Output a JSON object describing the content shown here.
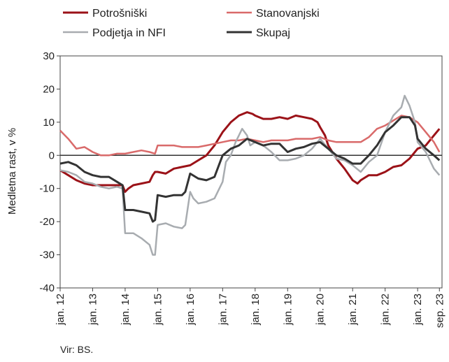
{
  "chart_data": {
    "type": "line",
    "ylabel": "Medletna rast, v %",
    "ylim": [
      -40,
      30
    ],
    "yticks": [
      30,
      20,
      10,
      0,
      -10,
      -20,
      -30,
      -40
    ],
    "x_range": [
      2012.0,
      2023.75
    ],
    "xticks": [
      {
        "x": 2012,
        "label": "jan. 12"
      },
      {
        "x": 2013,
        "label": "jan. 13"
      },
      {
        "x": 2014,
        "label": "jan. 14"
      },
      {
        "x": 2015,
        "label": "jan. 15"
      },
      {
        "x": 2016,
        "label": "jan. 16"
      },
      {
        "x": 2017,
        "label": "jan. 17"
      },
      {
        "x": 2018,
        "label": "jan. 18"
      },
      {
        "x": 2019,
        "label": "jan. 19"
      },
      {
        "x": 2020,
        "label": "jan. 20"
      },
      {
        "x": 2021,
        "label": "jan. 21"
      },
      {
        "x": 2022,
        "label": "jan. 22"
      },
      {
        "x": 2023,
        "label": "jan. 23"
      },
      {
        "x": 2023.67,
        "label": "sep. 23"
      }
    ],
    "legend_position": "top",
    "series": [
      {
        "name": "Potrošniški",
        "color": "#9b1218",
        "width": 3,
        "points": [
          [
            2012.0,
            -4.5
          ],
          [
            2012.25,
            -6
          ],
          [
            2012.5,
            -7.5
          ],
          [
            2012.75,
            -8.5
          ],
          [
            2013.0,
            -9
          ],
          [
            2013.25,
            -9
          ],
          [
            2013.5,
            -9
          ],
          [
            2013.75,
            -9
          ],
          [
            2013.92,
            -9
          ],
          [
            2014.0,
            -11
          ],
          [
            2014.1,
            -10
          ],
          [
            2014.25,
            -9
          ],
          [
            2014.5,
            -8.5
          ],
          [
            2014.75,
            -8
          ],
          [
            2014.85,
            -6
          ],
          [
            2014.92,
            -5
          ],
          [
            2015.0,
            -5
          ],
          [
            2015.25,
            -5.5
          ],
          [
            2015.5,
            -4
          ],
          [
            2015.75,
            -3.5
          ],
          [
            2016.0,
            -3
          ],
          [
            2016.25,
            -1.5
          ],
          [
            2016.5,
            0
          ],
          [
            2016.75,
            3
          ],
          [
            2017.0,
            7
          ],
          [
            2017.25,
            10
          ],
          [
            2017.5,
            12
          ],
          [
            2017.75,
            13
          ],
          [
            2017.92,
            12.5
          ],
          [
            2018.0,
            12
          ],
          [
            2018.25,
            11
          ],
          [
            2018.5,
            11
          ],
          [
            2018.75,
            11.5
          ],
          [
            2019.0,
            11
          ],
          [
            2019.25,
            12
          ],
          [
            2019.5,
            11.5
          ],
          [
            2019.75,
            11
          ],
          [
            2019.92,
            10
          ],
          [
            2020.0,
            8.5
          ],
          [
            2020.15,
            6
          ],
          [
            2020.25,
            3
          ],
          [
            2020.5,
            -1
          ],
          [
            2020.75,
            -4
          ],
          [
            2021.0,
            -7.5
          ],
          [
            2021.15,
            -8.5
          ],
          [
            2021.25,
            -7.5
          ],
          [
            2021.5,
            -6
          ],
          [
            2021.75,
            -6
          ],
          [
            2022.0,
            -5
          ],
          [
            2022.25,
            -3.5
          ],
          [
            2022.5,
            -3
          ],
          [
            2022.75,
            -1
          ],
          [
            2023.0,
            2
          ],
          [
            2023.25,
            3
          ],
          [
            2023.5,
            6
          ],
          [
            2023.67,
            8
          ]
        ]
      },
      {
        "name": "Stanovanjski",
        "color": "#d96a6a",
        "width": 2.5,
        "points": [
          [
            2012.0,
            7.5
          ],
          [
            2012.25,
            5
          ],
          [
            2012.5,
            2
          ],
          [
            2012.75,
            2.5
          ],
          [
            2013.0,
            1
          ],
          [
            2013.25,
            0
          ],
          [
            2013.5,
            0
          ],
          [
            2013.75,
            0.5
          ],
          [
            2014.0,
            0.5
          ],
          [
            2014.25,
            1
          ],
          [
            2014.5,
            1.5
          ],
          [
            2014.75,
            1
          ],
          [
            2014.92,
            0.5
          ],
          [
            2015.0,
            3
          ],
          [
            2015.25,
            3
          ],
          [
            2015.5,
            3
          ],
          [
            2015.75,
            2.5
          ],
          [
            2016.0,
            2.5
          ],
          [
            2016.25,
            2.5
          ],
          [
            2016.5,
            3
          ],
          [
            2016.75,
            3.5
          ],
          [
            2017.0,
            4
          ],
          [
            2017.25,
            4.5
          ],
          [
            2017.5,
            4.5
          ],
          [
            2017.75,
            5
          ],
          [
            2018.0,
            4.5
          ],
          [
            2018.25,
            4
          ],
          [
            2018.5,
            4.5
          ],
          [
            2018.75,
            4.5
          ],
          [
            2019.0,
            4.5
          ],
          [
            2019.25,
            5
          ],
          [
            2019.5,
            5
          ],
          [
            2019.75,
            5
          ],
          [
            2020.0,
            5.5
          ],
          [
            2020.25,
            4.5
          ],
          [
            2020.5,
            4
          ],
          [
            2020.75,
            4
          ],
          [
            2021.0,
            4
          ],
          [
            2021.25,
            4
          ],
          [
            2021.5,
            5.5
          ],
          [
            2021.75,
            8
          ],
          [
            2022.0,
            9
          ],
          [
            2022.25,
            10.5
          ],
          [
            2022.5,
            12
          ],
          [
            2022.75,
            11.5
          ],
          [
            2023.0,
            10
          ],
          [
            2023.25,
            7
          ],
          [
            2023.5,
            4
          ],
          [
            2023.67,
            1
          ]
        ]
      },
      {
        "name": "Podjetja in NFI",
        "color": "#a8acb0",
        "width": 2.5,
        "points": [
          [
            2012.0,
            -4.5
          ],
          [
            2012.25,
            -5
          ],
          [
            2012.5,
            -6
          ],
          [
            2012.75,
            -8
          ],
          [
            2013.0,
            -8.5
          ],
          [
            2013.25,
            -9.5
          ],
          [
            2013.5,
            -10
          ],
          [
            2013.75,
            -9.5
          ],
          [
            2013.92,
            -10
          ],
          [
            2014.0,
            -23.5
          ],
          [
            2014.25,
            -23.5
          ],
          [
            2014.5,
            -25
          ],
          [
            2014.75,
            -27
          ],
          [
            2014.85,
            -30
          ],
          [
            2014.92,
            -30
          ],
          [
            2015.0,
            -21
          ],
          [
            2015.25,
            -20.5
          ],
          [
            2015.5,
            -21.5
          ],
          [
            2015.75,
            -22
          ],
          [
            2015.85,
            -21
          ],
          [
            2016.0,
            -11
          ],
          [
            2016.1,
            -13
          ],
          [
            2016.25,
            -14.5
          ],
          [
            2016.5,
            -14
          ],
          [
            2016.75,
            -13
          ],
          [
            2017.0,
            -8
          ],
          [
            2017.1,
            -2
          ],
          [
            2017.25,
            0
          ],
          [
            2017.4,
            4
          ],
          [
            2017.5,
            6
          ],
          [
            2017.6,
            8
          ],
          [
            2017.75,
            6
          ],
          [
            2017.85,
            3
          ],
          [
            2018.0,
            4
          ],
          [
            2018.25,
            3
          ],
          [
            2018.5,
            1
          ],
          [
            2018.75,
            -1.5
          ],
          [
            2019.0,
            -1.5
          ],
          [
            2019.25,
            -1
          ],
          [
            2019.5,
            0
          ],
          [
            2019.75,
            2
          ],
          [
            2019.92,
            4
          ],
          [
            2020.0,
            5
          ],
          [
            2020.25,
            2
          ],
          [
            2020.5,
            -1
          ],
          [
            2020.75,
            -1.5
          ],
          [
            2021.0,
            -3
          ],
          [
            2021.25,
            -5
          ],
          [
            2021.5,
            -2
          ],
          [
            2021.75,
            0
          ],
          [
            2022.0,
            7
          ],
          [
            2022.25,
            12
          ],
          [
            2022.5,
            14.5
          ],
          [
            2022.6,
            18
          ],
          [
            2022.75,
            15
          ],
          [
            2022.92,
            10
          ],
          [
            2023.0,
            4
          ],
          [
            2023.25,
            1
          ],
          [
            2023.5,
            -4
          ],
          [
            2023.67,
            -6
          ]
        ]
      },
      {
        "name": "Skupaj",
        "color": "#333333",
        "width": 3,
        "points": [
          [
            2012.0,
            -2.5
          ],
          [
            2012.25,
            -2
          ],
          [
            2012.5,
            -3
          ],
          [
            2012.75,
            -5
          ],
          [
            2013.0,
            -6
          ],
          [
            2013.25,
            -6.5
          ],
          [
            2013.5,
            -6.5
          ],
          [
            2013.75,
            -8
          ],
          [
            2013.92,
            -9
          ],
          [
            2014.0,
            -16.5
          ],
          [
            2014.25,
            -16.5
          ],
          [
            2014.5,
            -17
          ],
          [
            2014.75,
            -17.5
          ],
          [
            2014.85,
            -20
          ],
          [
            2014.92,
            -19.5
          ],
          [
            2015.0,
            -12
          ],
          [
            2015.25,
            -12.5
          ],
          [
            2015.5,
            -12
          ],
          [
            2015.75,
            -12
          ],
          [
            2015.85,
            -11
          ],
          [
            2016.0,
            -5.5
          ],
          [
            2016.25,
            -7
          ],
          [
            2016.5,
            -7.5
          ],
          [
            2016.75,
            -6.5
          ],
          [
            2017.0,
            0
          ],
          [
            2017.25,
            2
          ],
          [
            2017.5,
            3
          ],
          [
            2017.75,
            5
          ],
          [
            2018.0,
            4
          ],
          [
            2018.25,
            3
          ],
          [
            2018.5,
            3.5
          ],
          [
            2018.75,
            3.5
          ],
          [
            2018.85,
            2.5
          ],
          [
            2019.0,
            1
          ],
          [
            2019.25,
            2
          ],
          [
            2019.5,
            2.5
          ],
          [
            2019.75,
            3.5
          ],
          [
            2020.0,
            4
          ],
          [
            2020.25,
            2
          ],
          [
            2020.5,
            0
          ],
          [
            2020.75,
            -1
          ],
          [
            2021.0,
            -2.5
          ],
          [
            2021.25,
            -2.5
          ],
          [
            2021.5,
            0
          ],
          [
            2021.75,
            3
          ],
          [
            2022.0,
            7
          ],
          [
            2022.25,
            9
          ],
          [
            2022.5,
            11.5
          ],
          [
            2022.75,
            11.5
          ],
          [
            2022.92,
            9
          ],
          [
            2023.0,
            5
          ],
          [
            2023.25,
            2
          ],
          [
            2023.5,
            0
          ],
          [
            2023.67,
            -1.5
          ]
        ]
      }
    ]
  },
  "source": "Vir: BS."
}
